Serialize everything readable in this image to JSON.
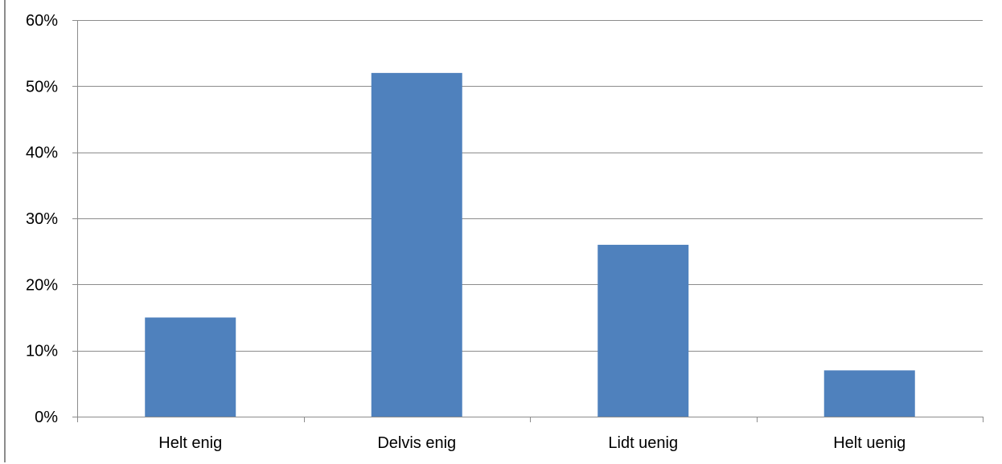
{
  "chart_data": {
    "type": "bar",
    "categories": [
      "Helt enig",
      "Delvis enig",
      "Lidt uenig",
      "Helt uenig"
    ],
    "values": [
      15,
      52,
      26,
      7
    ],
    "value_unit": "percent",
    "title": "",
    "xlabel": "",
    "ylabel": "",
    "ylim": [
      0,
      60
    ],
    "yticks": [
      0,
      10,
      20,
      30,
      40,
      50,
      60
    ],
    "ytick_labels": [
      "0%",
      "10%",
      "20%",
      "30%",
      "40%",
      "50%",
      "60%"
    ],
    "grid": true,
    "legend": "none",
    "colors": {
      "bar": "#4f81bd",
      "grid": "#8c8c8c",
      "axis": "#8c8c8c",
      "text": "#000000",
      "background": "#ffffff"
    }
  }
}
